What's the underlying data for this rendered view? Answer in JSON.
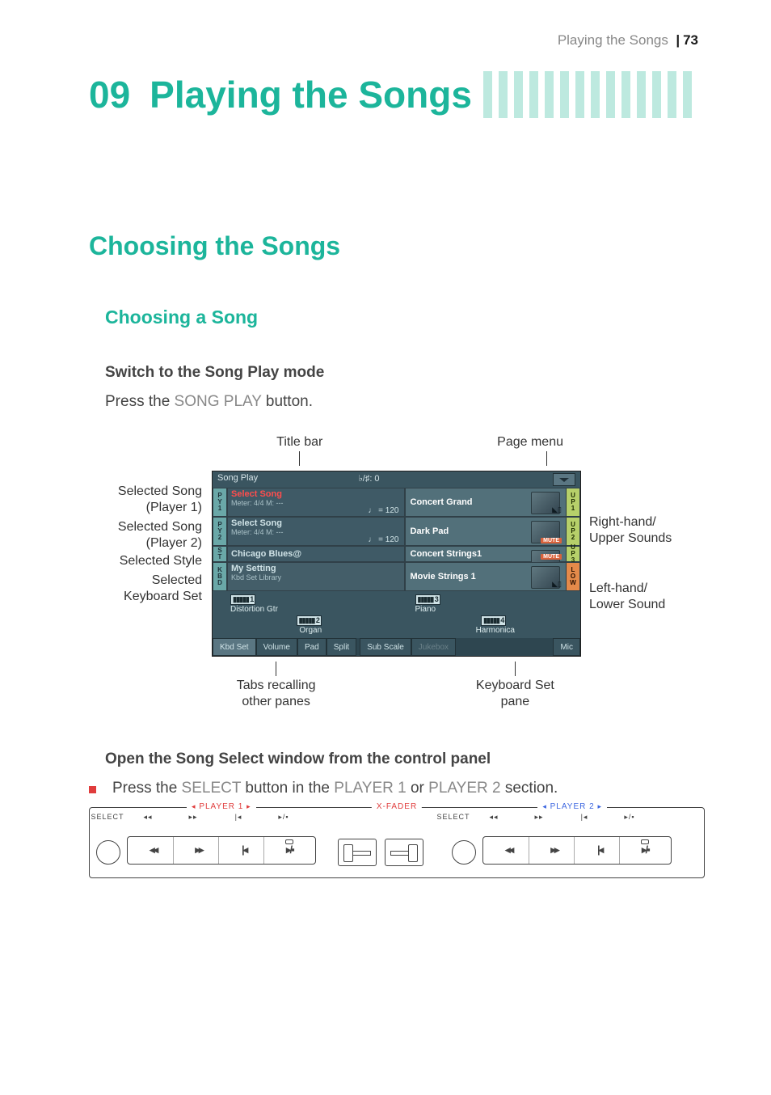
{
  "header": {
    "section": "Playing the Songs",
    "page": "73"
  },
  "chapter": {
    "number": "09",
    "title": "Playing the Songs"
  },
  "section_heading": "Choosing the Songs",
  "subsection_heading": "Choosing a Song",
  "step1": "Switch to the Song Play mode",
  "step1_body_a": "Press the ",
  "step1_body_cap": "SONG PLAY",
  "step1_body_b": " button.",
  "callouts": {
    "top_left": "Title bar",
    "top_right": "Page menu",
    "l1a": "Selected Song",
    "l1b": "(Player 1)",
    "l2a": "Selected Song",
    "l2b": "(Player 2)",
    "l3": "Selected Style",
    "l4a": "Selected",
    "l4b": "Keyboard Set",
    "r1a": "Right-hand/",
    "r1b": "Upper Sounds",
    "r2a": "Left-hand/",
    "r2b": "Lower Sound",
    "bot_left_a": "Tabs recalling",
    "bot_left_b": "other panes",
    "bot_right_a": "Keyboard Set",
    "bot_right_b": "pane"
  },
  "lcd": {
    "title": "Song Play",
    "transpose": "♭/♯: 0",
    "slots": [
      {
        "tag": [
          "P",
          "Y",
          "1"
        ],
        "tag_colors": [
          "#e0cc4a",
          "#e0cc4a",
          "#e0cc4a"
        ],
        "line1": "Select Song",
        "selected": true,
        "line2": "Meter: 4/4     M: ---",
        "tempo": "♩ = 120",
        "sound": "Concert Grand",
        "up": [
          "U",
          "P",
          "1"
        ],
        "up_color": "#b6d06a",
        "show_sound_icon": true
      },
      {
        "tag": [
          "P",
          "Y",
          "2"
        ],
        "tag_colors": [
          "#e0cc4a",
          "#e0cc4a",
          "#e0cc4a"
        ],
        "line1": "Select Song",
        "selected": false,
        "line2": "Meter: 4/4     M: ---",
        "tempo": "♩ = 120",
        "sound": "Dark Pad",
        "up": [
          "U",
          "P",
          "2"
        ],
        "up_color": "#b6d06a",
        "show_mute": true
      },
      {
        "tag": [
          "S",
          "T"
        ],
        "tag_colors": [
          "#e0cc4a",
          "#e0cc4a"
        ],
        "line1": "Chicago Blues@",
        "style": true,
        "sound": "Concert Strings1",
        "up": [
          "U",
          "P",
          "3"
        ],
        "up_color": "#b6d06a",
        "show_mute": true
      },
      {
        "tag": [
          "K",
          "B",
          "D"
        ],
        "tag_colors": [
          "#e0cc4a",
          "#e0cc4a",
          "#e0cc4a"
        ],
        "line1": "My Setting",
        "kbd": true,
        "line2": "Kbd Set Library",
        "sound": "Movie Strings 1",
        "up": [
          "L",
          "O",
          "W"
        ],
        "up_color": "#e48a4a",
        "low": true,
        "show_sound_icon": true
      }
    ],
    "pads": [
      {
        "num": "1",
        "label": "Distortion Gtr"
      },
      {
        "num": "3",
        "label": "Piano"
      },
      {
        "num": "2",
        "label": "Organ"
      },
      {
        "num": "4",
        "label": "Harmonica"
      }
    ],
    "tabs": [
      "Kbd Set",
      "Volume",
      "Pad",
      "Split",
      "Sub Scale",
      "Jukebox",
      "Mic"
    ],
    "tab_active": 0,
    "tab_disabled": [
      5
    ]
  },
  "step2": "Open the Song Select window from the control panel",
  "bullet_a": "Press the ",
  "bullet_cap1": "SELECT",
  "bullet_mid1": " button in the ",
  "bullet_cap2": "PLAYER 1",
  "bullet_mid2": " or ",
  "bullet_cap3": "PLAYER 2",
  "bullet_end": " section.",
  "panel": {
    "p1": "PLAYER 1",
    "p2": "PLAYER 2",
    "xfader": "X-FADER",
    "labels": [
      "SELECT",
      "◂◂",
      "▸▸",
      "|◂",
      "▸/▪"
    ],
    "labels2": [
      "SELECT",
      "◂◂",
      "▸▸",
      "|◂",
      "▸/▪"
    ]
  },
  "style": {
    "teal": "#1cb59b",
    "teal_light": "#bde9df",
    "gray_text": "#888888",
    "body": "#444444",
    "lcd_bg": "#3a5560",
    "lcd_accent": "#b6d06a",
    "lcd_low": "#e48a4a",
    "red": "#e03c3c",
    "blue": "#3c66e0"
  }
}
